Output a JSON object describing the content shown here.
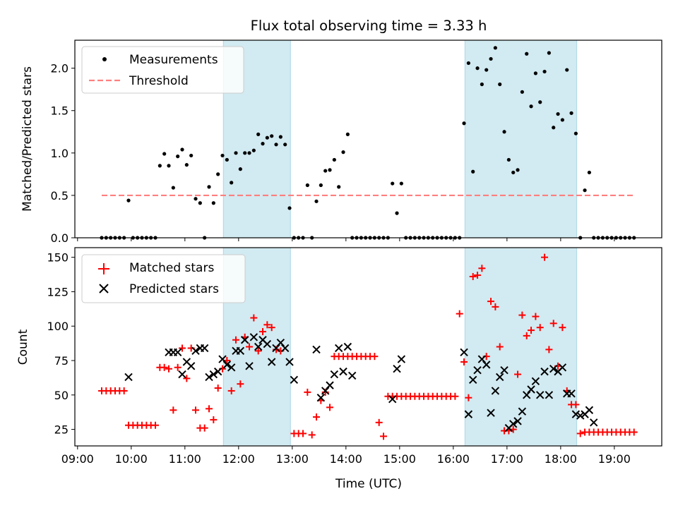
{
  "colors": {
    "measurement": "#000000",
    "threshold": "#ff7f7f",
    "matched": "#ff0000",
    "predicted": "#000000",
    "band": "#add8e6"
  },
  "chart_data": [
    {
      "type": "scatter",
      "title": "Flux total observing time = 3.33 h",
      "xlabel": "",
      "ylabel": "Matched/Predicted stars",
      "xlim": [
        "08:57",
        "19:53"
      ],
      "ylim": [
        0,
        2.33
      ],
      "yticks": [
        "0.0",
        "0.5",
        "1.0",
        "1.5",
        "2.0"
      ],
      "legend": [
        "Measurements",
        "Threshold"
      ],
      "legend_position": "top-left",
      "shaded_intervals": [
        [
          "11:43",
          "12:58"
        ],
        [
          "16:13",
          "18:18"
        ]
      ],
      "series": [
        {
          "name": "Measurements",
          "marker": "dot",
          "x": [
            "09:27",
            "09:32",
            "09:37",
            "09:42",
            "09:47",
            "09:52",
            "09:57",
            "10:02",
            "10:07",
            "10:12",
            "10:17",
            "10:22",
            "10:27",
            "10:32",
            "10:37",
            "10:42",
            "10:47",
            "10:52",
            "10:57",
            "11:02",
            "11:07",
            "11:12",
            "11:17",
            "11:22",
            "11:27",
            "11:32",
            "11:37",
            "11:42",
            "11:47",
            "11:52",
            "11:57",
            "12:02",
            "12:07",
            "12:12",
            "12:17",
            "12:22",
            "12:27",
            "12:32",
            "12:37",
            "12:42",
            "12:47",
            "12:52",
            "12:57",
            "13:02",
            "13:07",
            "13:12",
            "13:17",
            "13:22",
            "13:27",
            "13:32",
            "13:37",
            "13:42",
            "13:47",
            "13:52",
            "13:57",
            "14:02",
            "14:07",
            "14:12",
            "14:17",
            "14:22",
            "14:27",
            "14:32",
            "14:37",
            "14:42",
            "14:47",
            "14:52",
            "14:57",
            "15:02",
            "15:07",
            "15:12",
            "15:17",
            "15:22",
            "15:27",
            "15:32",
            "15:37",
            "15:42",
            "15:47",
            "15:52",
            "15:57",
            "16:02",
            "16:07",
            "16:12",
            "16:17",
            "16:22",
            "16:27",
            "16:32",
            "16:37",
            "16:42",
            "16:47",
            "16:52",
            "16:57",
            "17:02",
            "17:07",
            "17:12",
            "17:17",
            "17:22",
            "17:27",
            "17:32",
            "17:37",
            "17:42",
            "17:47",
            "17:52",
            "17:57",
            "18:02",
            "18:07",
            "18:12",
            "18:17",
            "18:22",
            "18:27",
            "18:32",
            "18:37",
            "18:42",
            "18:47",
            "18:52",
            "18:57",
            "19:02",
            "19:07",
            "19:12",
            "19:17",
            "19:22"
          ],
          "y": [
            0,
            0,
            0,
            0,
            0,
            0,
            0.44,
            0,
            0,
            0,
            0,
            0,
            0,
            0.85,
            0.99,
            0.85,
            0.59,
            0.96,
            1.04,
            0.86,
            0.97,
            0.46,
            0.41,
            0,
            0.6,
            0.41,
            0.75,
            0.97,
            0.92,
            0.65,
            1.0,
            0.81,
            1.0,
            1.0,
            1.03,
            1.22,
            1.11,
            1.18,
            1.2,
            1.1,
            1.19,
            1.1,
            0.35,
            0,
            0,
            0,
            0.62,
            0,
            0.43,
            0.62,
            0.79,
            0.8,
            0.92,
            0.6,
            1.01,
            1.22,
            0,
            0,
            0,
            0,
            0,
            0,
            0,
            0,
            0,
            0.64,
            0.29,
            0.64,
            0,
            0,
            0,
            0,
            0,
            0,
            0,
            0,
            0,
            0,
            0,
            0,
            0,
            1.35,
            2.06,
            0.78,
            2.0,
            1.81,
            1.98,
            2.11,
            2.24,
            1.81,
            1.25,
            0.92,
            0.77,
            0.8,
            1.72,
            2.17,
            1.55,
            1.94,
            1.6,
            1.96,
            2.18,
            1.3,
            1.46,
            1.39,
            1.98,
            1.47,
            1.23,
            0,
            0.56,
            0.77,
            0,
            0,
            0,
            0,
            0,
            0,
            0,
            0,
            0,
            0
          ]
        },
        {
          "name": "Threshold",
          "marker": "dashed-line",
          "x": [
            "09:27",
            "19:22"
          ],
          "y": [
            0.5,
            0.5
          ]
        }
      ]
    },
    {
      "type": "scatter",
      "title": "",
      "xlabel": "Time (UTC)",
      "ylabel": "Count",
      "xlim": [
        "08:57",
        "19:53"
      ],
      "ylim": [
        13,
        157
      ],
      "yticks": [
        "25",
        "50",
        "75",
        "100",
        "125",
        "150"
      ],
      "xticks": [
        "09:00",
        "10:00",
        "11:00",
        "12:00",
        "13:00",
        "14:00",
        "15:00",
        "16:00",
        "17:00",
        "18:00",
        "19:00"
      ],
      "legend": [
        "Matched stars",
        "Predicted stars"
      ],
      "legend_position": "top-left",
      "shaded_intervals": [
        [
          "11:43",
          "12:58"
        ],
        [
          "16:13",
          "18:18"
        ]
      ],
      "series": [
        {
          "name": "Matched stars",
          "marker": "plus",
          "x": [
            "09:27",
            "09:32",
            "09:37",
            "09:42",
            "09:47",
            "09:52",
            "09:57",
            "10:02",
            "10:07",
            "10:12",
            "10:17",
            "10:22",
            "10:27",
            "10:32",
            "10:37",
            "10:42",
            "10:47",
            "10:52",
            "10:57",
            "11:02",
            "11:07",
            "11:12",
            "11:17",
            "11:22",
            "11:27",
            "11:32",
            "11:37",
            "11:42",
            "11:47",
            "11:52",
            "11:57",
            "12:02",
            "12:07",
            "12:12",
            "12:17",
            "12:22",
            "12:27",
            "12:32",
            "12:37",
            "12:42",
            "12:47",
            "12:52",
            "12:57",
            "13:02",
            "13:07",
            "13:12",
            "13:17",
            "13:22",
            "13:27",
            "13:32",
            "13:37",
            "13:42",
            "13:47",
            "13:52",
            "13:57",
            "14:02",
            "14:07",
            "14:12",
            "14:17",
            "14:22",
            "14:27",
            "14:32",
            "14:37",
            "14:42",
            "14:47",
            "14:52",
            "14:57",
            "15:02",
            "15:07",
            "15:12",
            "15:17",
            "15:22",
            "15:27",
            "15:32",
            "15:37",
            "15:42",
            "15:47",
            "15:52",
            "15:57",
            "16:02",
            "16:07",
            "16:12",
            "16:17",
            "16:22",
            "16:27",
            "16:32",
            "16:37",
            "16:42",
            "16:47",
            "16:52",
            "16:57",
            "17:02",
            "17:07",
            "17:12",
            "17:17",
            "17:22",
            "17:27",
            "17:32",
            "17:37",
            "17:42",
            "17:47",
            "17:52",
            "17:57",
            "18:02",
            "18:07",
            "18:12",
            "18:17",
            "18:22",
            "18:27",
            "18:32",
            "18:37",
            "18:42",
            "18:47",
            "18:52",
            "18:57",
            "19:02",
            "19:07",
            "19:12",
            "19:17",
            "19:22"
          ],
          "y": [
            53,
            53,
            53,
            53,
            53,
            53,
            28,
            28,
            28,
            28,
            28,
            28,
            28,
            70,
            70,
            69,
            39,
            70,
            84,
            62,
            84,
            39,
            26,
            26,
            40,
            32,
            55,
            69,
            75,
            53,
            90,
            58,
            92,
            85,
            106,
            82,
            96,
            101,
            99,
            83,
            82,
            null,
            null,
            22,
            22,
            22,
            52,
            21,
            34,
            46,
            52,
            41,
            78,
            78,
            78,
            78,
            78,
            78,
            78,
            78,
            78,
            78,
            30,
            20,
            49,
            49,
            49,
            49,
            49,
            49,
            49,
            49,
            49,
            49,
            49,
            49,
            49,
            49,
            49,
            49,
            109,
            74,
            48,
            136,
            137,
            142,
            78,
            118,
            114,
            85,
            24,
            24,
            25,
            65,
            108,
            93,
            97,
            107,
            99,
            150,
            83,
            102,
            71,
            99,
            53,
            43,
            43,
            22,
            23,
            23,
            23,
            23,
            23,
            23,
            23,
            23,
            23,
            23,
            23,
            23
          ]
        },
        {
          "name": "Predicted stars",
          "marker": "x",
          "x": [
            "09:57",
            "10:42",
            "10:47",
            "10:52",
            "10:57",
            "11:02",
            "11:07",
            "11:12",
            "11:17",
            "11:22",
            "11:27",
            "11:32",
            "11:37",
            "11:42",
            "11:47",
            "11:52",
            "11:57",
            "12:02",
            "12:07",
            "12:12",
            "12:17",
            "12:22",
            "12:27",
            "12:32",
            "12:37",
            "12:42",
            "12:47",
            "12:52",
            "12:57",
            "13:02",
            "13:27",
            "13:32",
            "13:37",
            "13:42",
            "13:47",
            "13:52",
            "13:57",
            "14:02",
            "14:07",
            "14:52",
            "14:57",
            "15:02",
            "16:12",
            "16:17",
            "16:22",
            "16:27",
            "16:32",
            "16:37",
            "16:42",
            "16:47",
            "16:52",
            "16:57",
            "17:02",
            "17:07",
            "17:12",
            "17:17",
            "17:22",
            "17:27",
            "17:32",
            "17:37",
            "17:42",
            "17:47",
            "17:52",
            "17:57",
            "18:02",
            "18:07",
            "18:12",
            "18:17",
            "18:22",
            "18:27",
            "18:32",
            "18:37"
          ],
          "y": [
            63,
            81,
            81,
            81,
            65,
            74,
            71,
            82,
            84,
            84,
            63,
            65,
            67,
            76,
            72,
            70,
            82,
            82,
            90,
            71,
            92,
            85,
            90,
            87,
            74,
            84,
            88,
            84,
            74,
            61,
            83,
            48,
            53,
            57,
            65,
            84,
            67,
            85,
            64,
            47,
            69,
            76,
            81,
            36,
            61,
            68,
            76,
            72,
            37,
            53,
            63,
            68,
            26,
            29,
            31,
            38,
            50,
            54,
            60,
            50,
            67,
            50,
            69,
            67,
            70,
            51,
            51,
            36,
            35,
            36,
            39,
            30
          ]
        }
      ]
    }
  ]
}
